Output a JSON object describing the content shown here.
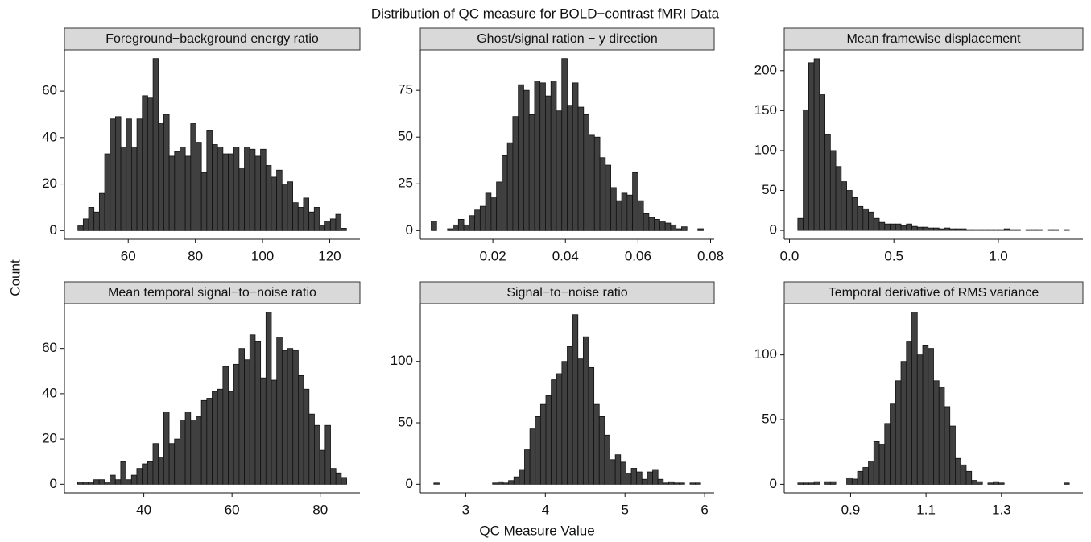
{
  "title": "Distribution of QC measure for BOLD−contrast fMRI Data",
  "xlabel": "QC Measure Value",
  "ylabel": "Count",
  "chart_data": [
    {
      "type": "histogram",
      "title": "Foreground−background energy ratio",
      "color": "#404040",
      "bins": [
        45,
        46.6,
        48.2,
        49.8,
        51.4,
        53,
        54.6,
        56.2,
        57.8,
        59.4,
        61,
        62.6,
        64.2,
        65.8,
        67.4,
        69,
        70.6,
        72.2,
        73.8,
        75.4,
        77,
        78.6,
        80.2,
        81.8,
        83.4,
        85,
        86.6,
        88.2,
        89.8,
        91.4,
        93,
        94.6,
        96.2,
        97.8,
        99.4,
        101,
        102.6,
        104.2,
        105.8,
        107.4,
        109,
        110.6,
        112.2,
        113.8,
        115.4,
        117,
        118.6,
        120.2,
        121.8,
        123.4,
        125
      ],
      "counts": [
        2,
        5,
        10,
        8,
        16,
        33,
        48,
        49,
        36,
        48,
        36,
        48,
        58,
        57,
        74,
        46,
        50,
        32,
        34,
        36,
        32,
        46,
        38,
        25,
        43,
        37,
        36,
        33,
        33,
        36,
        27,
        36,
        35,
        32,
        35,
        28,
        23,
        26,
        20,
        21,
        12,
        10,
        14,
        8,
        10,
        2,
        4,
        5,
        7,
        1
      ],
      "xlim": [
        41,
        129
      ],
      "xticks": [
        60,
        80,
        100,
        120
      ],
      "ylim": [
        -3.7,
        77.7
      ],
      "yticks": [
        0,
        20,
        40,
        60
      ]
    },
    {
      "type": "histogram",
      "title": "Ghost/signal ration − y direction",
      "color": "#404040",
      "bins": [
        0.003,
        0.0045,
        0.006,
        0.0075,
        0.009,
        0.0105,
        0.012,
        0.0135,
        0.015,
        0.0165,
        0.018,
        0.0195,
        0.021,
        0.0225,
        0.024,
        0.0255,
        0.027,
        0.0285,
        0.03,
        0.0315,
        0.033,
        0.0345,
        0.036,
        0.0375,
        0.039,
        0.0405,
        0.042,
        0.0435,
        0.045,
        0.0465,
        0.048,
        0.0495,
        0.051,
        0.0525,
        0.054,
        0.0555,
        0.057,
        0.0585,
        0.06,
        0.0615,
        0.063,
        0.0645,
        0.066,
        0.0675,
        0.069,
        0.0705,
        0.072,
        0.0735,
        0.075,
        0.0765,
        0.078
      ],
      "counts": [
        5,
        0,
        0,
        1,
        3,
        6,
        3,
        8,
        11,
        13,
        20,
        18,
        26,
        40,
        47,
        61,
        78,
        75,
        62,
        80,
        79,
        72,
        80,
        64,
        92,
        67,
        79,
        66,
        62,
        51,
        50,
        39,
        35,
        23,
        16,
        20,
        19,
        31,
        16,
        9,
        7,
        6,
        5,
        4,
        3,
        1,
        2,
        0,
        0,
        1
      ],
      "xlim": [
        0,
        0.081
      ],
      "xticks": [
        0.02,
        0.04,
        0.06,
        0.08
      ],
      "ylim": [
        -4.6,
        96.6
      ],
      "yticks": [
        0,
        25,
        50,
        75
      ]
    },
    {
      "type": "histogram",
      "title": "Mean framewise displacement",
      "color": "#404040",
      "bins": [
        0.04,
        0.066,
        0.092,
        0.118,
        0.144,
        0.17,
        0.196,
        0.222,
        0.248,
        0.274,
        0.3,
        0.326,
        0.352,
        0.378,
        0.404,
        0.43,
        0.456,
        0.482,
        0.508,
        0.534,
        0.56,
        0.586,
        0.612,
        0.638,
        0.664,
        0.69,
        0.716,
        0.742,
        0.768,
        0.794,
        0.82,
        0.846,
        0.872,
        0.898,
        0.924,
        0.95,
        0.976,
        1.002,
        1.028,
        1.054,
        1.08,
        1.106,
        1.132,
        1.158,
        1.184,
        1.21,
        1.236,
        1.262,
        1.288,
        1.314,
        1.34
      ],
      "counts": [
        15,
        151,
        210,
        215,
        170,
        120,
        100,
        80,
        61,
        50,
        41,
        30,
        27,
        23,
        15,
        10,
        8,
        8,
        8,
        6,
        8,
        5,
        4,
        4,
        3,
        3,
        2,
        3,
        2,
        2,
        2,
        1,
        1,
        1,
        1,
        1,
        1,
        1,
        2,
        1,
        1,
        0,
        1,
        1,
        1,
        0,
        1,
        1,
        0,
        1
      ],
      "xlim": [
        -0.025,
        1.405
      ],
      "xticks": [
        {
          "value": 0,
          "label": "0.0"
        },
        {
          "value": 0.5,
          "label": "0.5"
        },
        {
          "value": 1,
          "label": "1.0"
        }
      ],
      "ylim": [
        -11,
        226
      ],
      "yticks": [
        0,
        50,
        100,
        150,
        200
      ]
    },
    {
      "type": "histogram",
      "title": "Mean temporal signal−to−noise ratio",
      "color": "#404040",
      "bins": [
        25,
        26.22,
        27.44,
        28.66,
        29.88,
        31.1,
        32.32,
        33.54,
        34.76,
        35.98,
        37.2,
        38.42,
        39.64,
        40.86,
        42.08,
        43.3,
        44.52,
        45.74,
        46.96,
        48.18,
        49.4,
        50.62,
        51.84,
        53.06,
        54.28,
        55.5,
        56.72,
        57.94,
        59.16,
        60.38,
        61.6,
        62.82,
        64.04,
        65.26,
        66.48,
        67.7,
        68.92,
        70.14,
        71.36,
        72.58,
        73.8,
        75.02,
        76.24,
        77.46,
        78.68,
        79.9,
        81.12,
        82.34,
        83.56,
        84.78,
        86
      ],
      "counts": [
        1,
        1,
        1,
        2,
        2,
        1,
        4,
        2,
        10,
        2,
        4,
        7,
        9,
        10,
        18,
        12,
        32,
        18,
        20,
        28,
        32,
        28,
        30,
        37,
        38,
        41,
        42,
        52,
        41,
        53,
        60,
        55,
        66,
        63,
        47,
        76,
        46,
        65,
        59,
        60,
        59,
        48,
        42,
        31,
        26,
        15,
        26,
        7,
        5,
        3
      ],
      "xlim": [
        22,
        89
      ],
      "xticks": [
        40,
        60,
        80
      ],
      "ylim": [
        -3.8,
        79.8
      ],
      "yticks": [
        0,
        20,
        40,
        60
      ]
    },
    {
      "type": "histogram",
      "title": "Signal−to−noise ratio",
      "color": "#404040",
      "bins": [
        2.6,
        2.667,
        2.734,
        2.801,
        2.868,
        2.935,
        3.002,
        3.069,
        3.136,
        3.203,
        3.27,
        3.337,
        3.404,
        3.471,
        3.538,
        3.605,
        3.672,
        3.739,
        3.806,
        3.873,
        3.94,
        4.007,
        4.074,
        4.141,
        4.208,
        4.275,
        4.342,
        4.409,
        4.476,
        4.543,
        4.61,
        4.677,
        4.744,
        4.811,
        4.878,
        4.945,
        5.012,
        5.079,
        5.146,
        5.213,
        5.28,
        5.347,
        5.414,
        5.481,
        5.548,
        5.615,
        5.682,
        5.749,
        5.816,
        5.883,
        5.95
      ],
      "counts": [
        1,
        0,
        0,
        0,
        0,
        0,
        0,
        0,
        0,
        0,
        0,
        1,
        2,
        1,
        3,
        6,
        12,
        28,
        45,
        55,
        65,
        72,
        85,
        90,
        100,
        112,
        138,
        102,
        120,
        95,
        65,
        55,
        40,
        20,
        24,
        18,
        9,
        13,
        10,
        4,
        10,
        12,
        4,
        1,
        2,
        1,
        1,
        0,
        1,
        1
      ],
      "xlim": [
        2.43,
        6.12
      ],
      "xticks": [
        3,
        4,
        5,
        6
      ],
      "ylim": [
        -7,
        147
      ],
      "yticks": [
        0,
        50,
        100
      ]
    },
    {
      "type": "histogram",
      "title": "Temporal derivative of RMS variance",
      "color": "#404040",
      "bins": [
        0.76,
        0.7744,
        0.7888,
        0.8032,
        0.8176,
        0.832,
        0.8464,
        0.8608,
        0.8752,
        0.8896,
        0.904,
        0.9184,
        0.9328,
        0.9472,
        0.9616,
        0.976,
        0.9904,
        1.0048,
        1.0192,
        1.0336,
        1.048,
        1.0624,
        1.0768,
        1.0912,
        1.1056,
        1.12,
        1.1344,
        1.1488,
        1.1632,
        1.1776,
        1.192,
        1.2064,
        1.2208,
        1.2352,
        1.2496,
        1.264,
        1.2784,
        1.2928,
        1.3072,
        1.3216,
        1.336,
        1.3504,
        1.3648,
        1.3792,
        1.3936,
        1.408,
        1.4224,
        1.4368,
        1.4512,
        1.4656,
        1.48
      ],
      "counts": [
        1,
        1,
        1,
        2,
        0,
        2,
        2,
        0,
        0,
        5,
        4,
        10,
        13,
        18,
        33,
        31,
        47,
        62,
        80,
        95,
        110,
        133,
        100,
        107,
        105,
        80,
        75,
        60,
        45,
        20,
        15,
        10,
        3,
        2,
        0,
        1,
        2,
        1,
        0,
        0,
        0,
        0,
        0,
        0,
        0,
        0,
        0,
        0,
        0,
        1
      ],
      "xlim": [
        0.724,
        1.516
      ],
      "xticks": [
        0.9,
        1.1,
        1.3
      ],
      "ylim": [
        -6.6,
        139.6
      ],
      "yticks": [
        0,
        50,
        100
      ]
    }
  ]
}
